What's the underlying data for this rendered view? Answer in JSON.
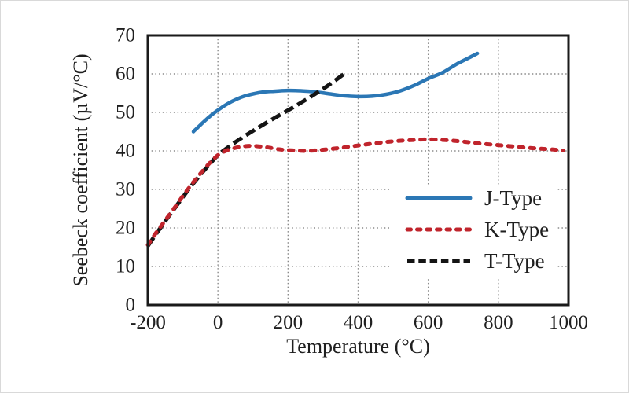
{
  "chart_data": {
    "type": "line",
    "title": "",
    "xlabel": "Temperature (°C)",
    "ylabel": "Seebeck coefficient (µV/°C)",
    "xlim": [
      -200,
      1000
    ],
    "ylim": [
      0,
      70
    ],
    "x_ticks": [
      -200,
      0,
      200,
      400,
      600,
      800,
      1000
    ],
    "y_ticks": [
      0,
      10,
      20,
      30,
      40,
      50,
      60,
      70
    ],
    "grid": true,
    "grid_color": "#8a8a8a",
    "axis_color": "#1a1a1a",
    "text_color": "#1f1f1f",
    "legend_position": "inside-lower-right",
    "legend_items": [
      "J-Type",
      "K-Type",
      "T-Type"
    ],
    "draw_order": [
      "J-Type",
      "T-Type",
      "K-Type"
    ],
    "series": [
      {
        "name": "J-Type",
        "color": "#2b77b5",
        "style": "solid",
        "points": [
          [
            -70,
            45
          ],
          [
            -55,
            46.3
          ],
          [
            -40,
            47.6
          ],
          [
            -20,
            49.2
          ],
          [
            0,
            50.6
          ],
          [
            25,
            52.1
          ],
          [
            50,
            53.3
          ],
          [
            75,
            54.2
          ],
          [
            100,
            54.8
          ],
          [
            130,
            55.3
          ],
          [
            160,
            55.5
          ],
          [
            200,
            55.7
          ],
          [
            240,
            55.6
          ],
          [
            280,
            55.3
          ],
          [
            320,
            54.8
          ],
          [
            360,
            54.3
          ],
          [
            400,
            54.1
          ],
          [
            440,
            54.2
          ],
          [
            480,
            54.7
          ],
          [
            520,
            55.6
          ],
          [
            560,
            57
          ],
          [
            600,
            58.8
          ],
          [
            640,
            60.3
          ],
          [
            680,
            62.5
          ],
          [
            710,
            63.9
          ],
          [
            740,
            65.3
          ]
        ]
      },
      {
        "name": "K-Type",
        "color": "#c0242c",
        "style": "dotted",
        "points": [
          [
            -200,
            15.6
          ],
          [
            -175,
            18.9
          ],
          [
            -150,
            22
          ],
          [
            -125,
            25.1
          ],
          [
            -100,
            28.3
          ],
          [
            -75,
            31.3
          ],
          [
            -50,
            34.1
          ],
          [
            -25,
            36.7
          ],
          [
            0,
            38.9
          ],
          [
            25,
            40.1
          ],
          [
            50,
            40.8
          ],
          [
            75,
            41.2
          ],
          [
            100,
            41.3
          ],
          [
            125,
            41.1
          ],
          [
            150,
            40.8
          ],
          [
            175,
            40.4
          ],
          [
            200,
            40.2
          ],
          [
            225,
            40.1
          ],
          [
            250,
            40
          ],
          [
            275,
            40.1
          ],
          [
            300,
            40.3
          ],
          [
            350,
            40.8
          ],
          [
            400,
            41.4
          ],
          [
            450,
            42
          ],
          [
            500,
            42.5
          ],
          [
            550,
            42.8
          ],
          [
            600,
            43
          ],
          [
            650,
            42.8
          ],
          [
            700,
            42.4
          ],
          [
            750,
            41.9
          ],
          [
            800,
            41.5
          ],
          [
            850,
            41.1
          ],
          [
            900,
            40.7
          ],
          [
            950,
            40.4
          ],
          [
            985,
            40.1
          ]
        ]
      },
      {
        "name": "T-Type",
        "color": "#141414",
        "style": "dashed",
        "points": [
          [
            -200,
            15.3
          ],
          [
            -175,
            18.6
          ],
          [
            -150,
            21.8
          ],
          [
            -125,
            24.9
          ],
          [
            -100,
            28
          ],
          [
            -75,
            31
          ],
          [
            -50,
            33.8
          ],
          [
            -25,
            36.4
          ],
          [
            0,
            38.9
          ],
          [
            30,
            41
          ],
          [
            60,
            42.9
          ],
          [
            100,
            45.2
          ],
          [
            140,
            47.4
          ],
          [
            180,
            49.5
          ],
          [
            220,
            51.6
          ],
          [
            260,
            53.8
          ],
          [
            300,
            56.1
          ],
          [
            330,
            58
          ],
          [
            360,
            60
          ]
        ]
      }
    ]
  }
}
